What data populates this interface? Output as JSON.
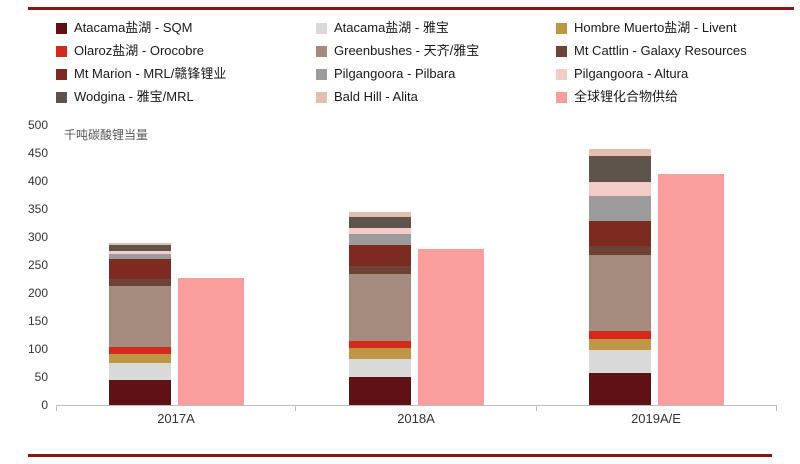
{
  "legend": [
    {
      "label": "Atacama盐湖 - SQM",
      "color": "#5f1216"
    },
    {
      "label": "Atacama盐湖 - 雅宝",
      "color": "#d9d9d9"
    },
    {
      "label": "Hombre Muerto盐湖 - Livent",
      "color": "#bd9745"
    },
    {
      "label": "Olaroz盐湖 - Orocobre",
      "color": "#d42a1e"
    },
    {
      "label": "Greenbushes - 天齐/雅宝",
      "color": "#a58a7e"
    },
    {
      "label": "Mt Cattlin - Galaxy Resources",
      "color": "#6d4336"
    },
    {
      "label": "Mt Marion - MRL/赣锋锂业",
      "color": "#7d2b20"
    },
    {
      "label": "Pilgangoora - Pilbara",
      "color": "#9c9c9c"
    },
    {
      "label": "Pilgangoora - Altura",
      "color": "#f4cbc8"
    },
    {
      "label": "Wodgina - 雅宝/MRL",
      "color": "#5e544c"
    },
    {
      "label": "Bald Hill - Alita",
      "color": "#e2bfae"
    },
    {
      "label": "全球锂化合物供给",
      "color": "#f99d9d"
    }
  ],
  "chart_data": {
    "type": "bar",
    "title": "",
    "ylabel": "千吨碳酸锂当量",
    "ylim": [
      0,
      500
    ],
    "yticks": [
      0,
      50,
      100,
      150,
      200,
      250,
      300,
      350,
      400,
      450,
      500
    ],
    "grid": false,
    "legend_position": "top",
    "categories": [
      "2017A",
      "2018A",
      "2019A/E"
    ],
    "stack_series": [
      {
        "name": "Atacama盐湖 - SQM",
        "color": "#5f1216",
        "values": [
          45,
          50,
          58
        ]
      },
      {
        "name": "Atacama盐湖 - 雅宝",
        "color": "#d9d9d9",
        "values": [
          30,
          33,
          40
        ]
      },
      {
        "name": "Hombre Muerto盐湖 - Livent",
        "color": "#bd9745",
        "values": [
          16,
          18,
          20
        ]
      },
      {
        "name": "Olaroz盐湖 - Orocobre",
        "color": "#d42a1e",
        "values": [
          12,
          13,
          15
        ]
      },
      {
        "name": "Greenbushes - 天齐/雅宝",
        "color": "#a58a7e",
        "values": [
          110,
          120,
          135
        ]
      },
      {
        "name": "Mt Cattlin - Galaxy Resources",
        "color": "#6d4336",
        "values": [
          12,
          14,
          16
        ]
      },
      {
        "name": "Mt Marion - MRL/赣锋锂业",
        "color": "#7d2b20",
        "values": [
          35,
          38,
          45
        ]
      },
      {
        "name": "Pilgangoora - Pilbara",
        "color": "#9c9c9c",
        "values": [
          10,
          20,
          45
        ]
      },
      {
        "name": "Pilgangoora - Altura",
        "color": "#f4cbc8",
        "values": [
          5,
          10,
          25
        ]
      },
      {
        "name": "Wodgina - 雅宝/MRL",
        "color": "#5e544c",
        "values": [
          10,
          20,
          45
        ]
      },
      {
        "name": "Bald Hill - Alita",
        "color": "#e2bfae",
        "values": [
          5,
          9,
          14
        ]
      }
    ],
    "supply_series": {
      "name": "全球锂化合物供给",
      "color": "#f99d9d",
      "values": [
        227,
        278,
        412
      ]
    }
  },
  "style": {
    "rule_color": "#8e1414"
  }
}
